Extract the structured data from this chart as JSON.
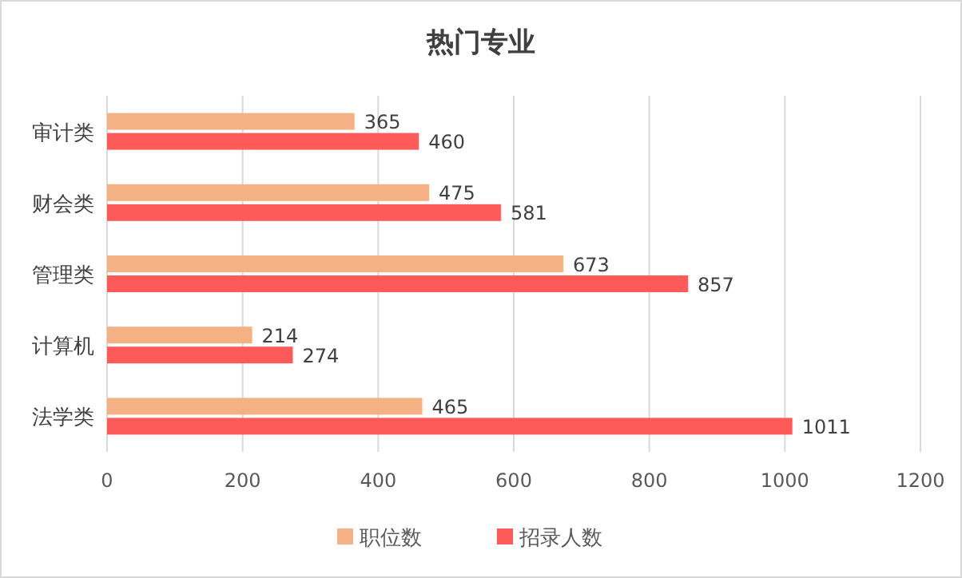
{
  "chart_data": {
    "type": "bar",
    "orientation": "horizontal",
    "title": "热门专业",
    "categories": [
      "审计类",
      "财会类",
      "管理类",
      "计算机",
      "法学类"
    ],
    "series": [
      {
        "name": "职位数",
        "color": "#f4b183",
        "values": [
          365,
          475,
          673,
          214,
          465
        ]
      },
      {
        "name": "招录人数",
        "color": "#ff5a5a",
        "values": [
          460,
          581,
          857,
          274,
          1011
        ]
      }
    ],
    "xlim": [
      0,
      1200
    ],
    "xticks": [
      0,
      200,
      400,
      600,
      800,
      1000,
      1200
    ],
    "grid": "x",
    "legend": "bottom",
    "data_labels": true
  }
}
